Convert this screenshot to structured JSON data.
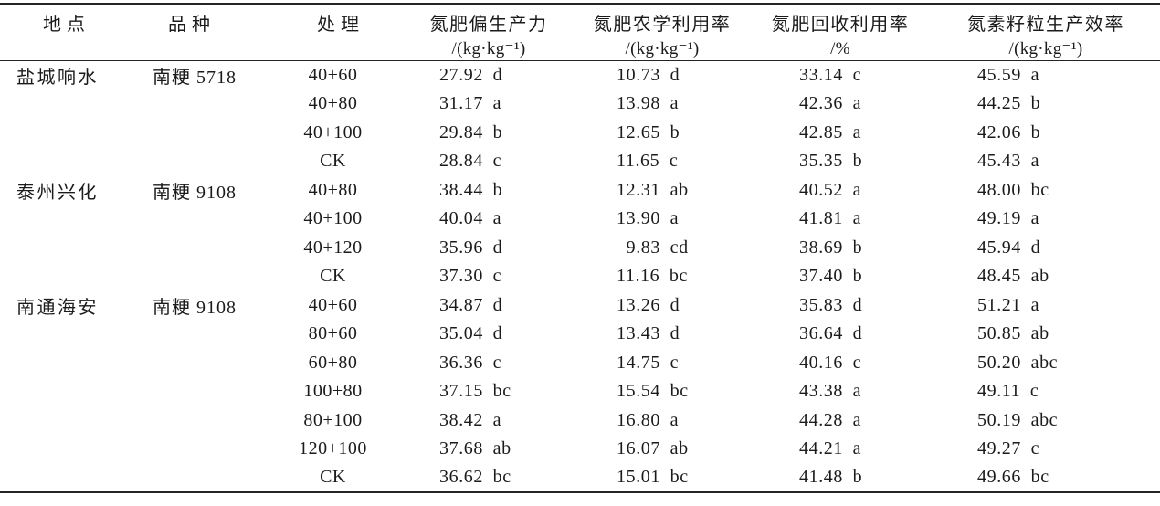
{
  "table": {
    "columns": [
      {
        "title": "地点",
        "unit": ""
      },
      {
        "title": "品种",
        "unit": ""
      },
      {
        "title": "处理",
        "unit": ""
      },
      {
        "title": "氮肥偏生产力",
        "unit": "/(kg·kg⁻¹)"
      },
      {
        "title": "氮肥农学利用率",
        "unit": "/(kg·kg⁻¹)"
      },
      {
        "title": "氮肥回收利用率",
        "unit": "/%"
      },
      {
        "title": "氮素籽粒生产效率",
        "unit": "/(kg·kg⁻¹)"
      }
    ],
    "rows": [
      [
        "盐城响水",
        "南粳 5718",
        "40+60",
        "27.92 d",
        "10.73 d",
        "33.14 c",
        "45.59 a"
      ],
      [
        "",
        "",
        "40+80",
        "31.17 a",
        "13.98 a",
        "42.36 a",
        "44.25 b"
      ],
      [
        "",
        "",
        "40+100",
        "29.84 b",
        "12.65 b",
        "42.85 a",
        "42.06 b"
      ],
      [
        "",
        "",
        "CK",
        "28.84 c",
        "11.65 c",
        "35.35 b",
        "45.43 a"
      ],
      [
        "泰州兴化",
        "南粳 9108",
        "40+80",
        "38.44 b",
        "12.31 ab",
        "40.52 a",
        "48.00 bc"
      ],
      [
        "",
        "",
        "40+100",
        "40.04 a",
        "13.90 a",
        "41.81 a",
        "49.19 a"
      ],
      [
        "",
        "",
        "40+120",
        "35.96 d",
        " 9.83 cd",
        "38.69 b",
        "45.94 d"
      ],
      [
        "",
        "",
        "CK",
        "37.30 c",
        "11.16 bc",
        "37.40 b",
        "48.45 ab"
      ],
      [
        "南通海安",
        "南粳 9108",
        "40+60",
        "34.87 d",
        "13.26 d",
        "35.83 d",
        "51.21 a"
      ],
      [
        "",
        "",
        "80+60",
        "35.04 d",
        "13.43 d",
        "36.64 d",
        "50.85 ab"
      ],
      [
        "",
        "",
        "60+80",
        "36.36 c",
        "14.75 c",
        "40.16 c",
        "50.20 abc"
      ],
      [
        "",
        "",
        "100+80",
        "37.15 bc",
        "15.54 bc",
        "43.38 a",
        "49.11 c"
      ],
      [
        "",
        "",
        "80+100",
        "38.42 a",
        "16.80 a",
        "44.28 a",
        "50.19 abc"
      ],
      [
        "",
        "",
        "120+100",
        "37.68 ab",
        "16.07 ab",
        "44.21 a",
        "49.27 c"
      ],
      [
        "",
        "",
        "CK",
        "36.62 bc",
        "15.01 bc",
        "41.48 b",
        "49.66 bc"
      ]
    ]
  }
}
